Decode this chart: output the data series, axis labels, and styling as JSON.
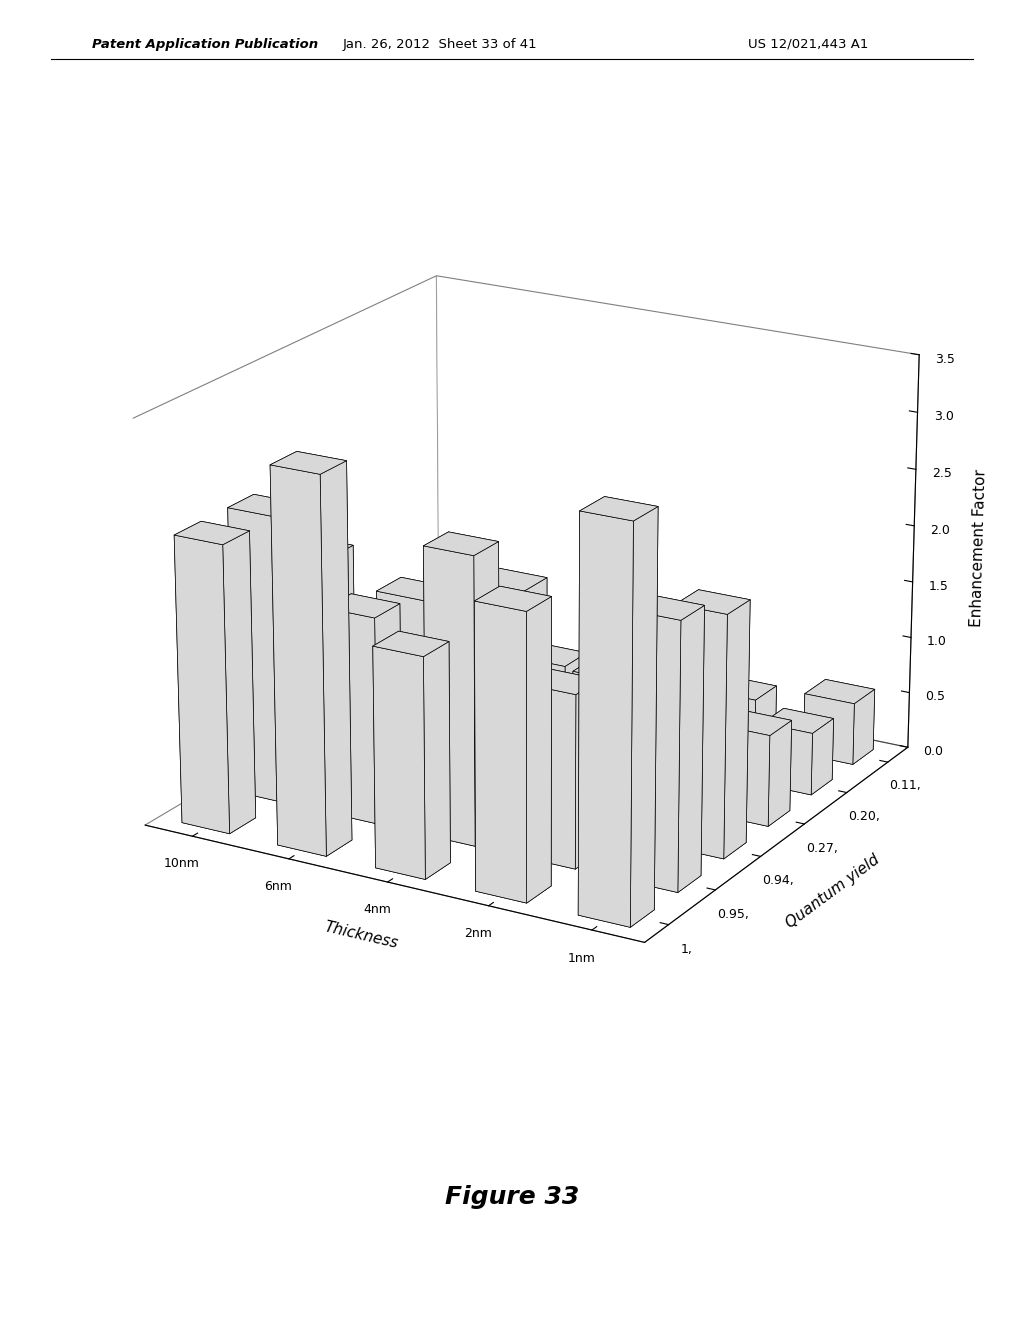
{
  "thickness_labels": [
    "10nm",
    "6nm",
    "4nm",
    "2nm",
    "1nm"
  ],
  "qy_labels": [
    "1,",
    "0.95,",
    "0.94,",
    "0.27,",
    "0.20,",
    "0.11,"
  ],
  "xlabel": "Thickness",
  "ylabel": "Quantum yield",
  "zlabel": "Enhancement Factor",
  "zlim": [
    0.0,
    3.5
  ],
  "zticks": [
    0.0,
    0.5,
    1.0,
    1.5,
    2.0,
    2.5,
    3.0,
    3.5
  ],
  "bar_color_face": "#d8d8d8",
  "bar_color_top": "#e8e8e8",
  "bar_edge_color": "#000000",
  "background_color": "#ffffff",
  "figure_caption": "Figure 33",
  "header_left": "Patent Application Publication",
  "header_mid": "Jan. 26, 2012  Sheet 33 of 41",
  "header_right": "US 12/021,443 A1",
  "values": [
    [
      2.5,
      3.25,
      1.9,
      2.45,
      3.35
    ],
    [
      2.5,
      1.8,
      2.5,
      1.5,
      2.3
    ],
    [
      1.9,
      1.7,
      1.95,
      1.35,
      2.1
    ],
    [
      0.75,
      0.5,
      0.65,
      0.55,
      0.8
    ],
    [
      0.5,
      0.35,
      0.45,
      0.4,
      0.55
    ],
    [
      0.5,
      0.35,
      0.45,
      0.4,
      0.55
    ]
  ],
  "note": "values[j][i]: j=qy index (0=1..5=0.11), i=thickness index (0=10nm..4=1nm)"
}
